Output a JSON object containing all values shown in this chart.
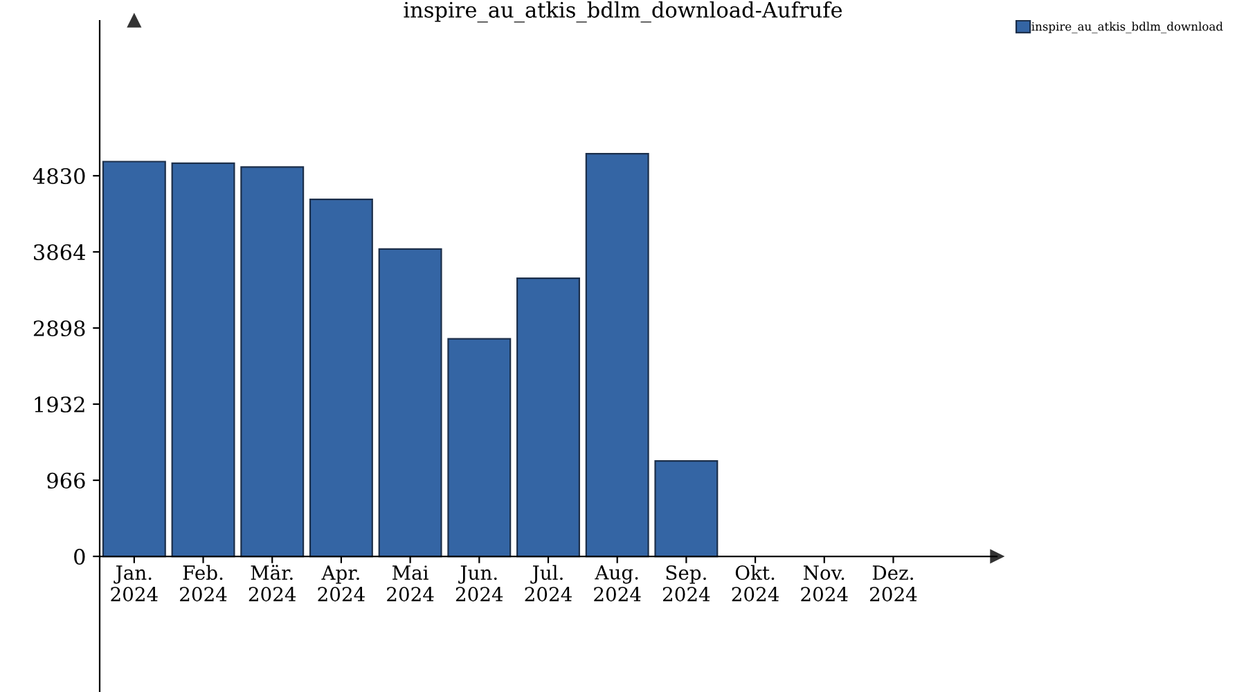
{
  "chart_data": {
    "type": "bar",
    "title": "inspire_au_atkis_bdlm_download-Aufrufe",
    "categories": [
      "Jan.\n2024",
      "Feb.\n2024",
      "Mär.\n2024",
      "Apr.\n2024",
      "Mai\n2024",
      "Jun.\n2024",
      "Jul.\n2024",
      "Aug.\n2024",
      "Sep.\n2024",
      "Okt.\n2024",
      "Nov.\n2024",
      "Dez.\n2024"
    ],
    "series": [
      {
        "name": "inspire_au_atkis_bdlm_download",
        "color": "#3465a4",
        "values": [
          5010,
          4990,
          4940,
          4530,
          3900,
          2760,
          3530,
          5110,
          1210,
          0,
          0,
          0
        ]
      }
    ],
    "ylim": [
      -1721,
      6797
    ],
    "yticks": [
      0,
      966,
      1932,
      2898,
      3864,
      4830
    ],
    "grid": false,
    "legend": "top right"
  }
}
